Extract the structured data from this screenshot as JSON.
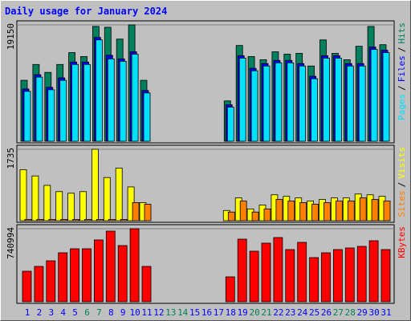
{
  "chart_data": [
    {
      "type": "bar",
      "title": "Daily usage for January 2024",
      "title_color": "#0000ff",
      "ylim": [
        0,
        19150
      ],
      "yticks": [
        19150
      ],
      "legend_separator": "/",
      "series": [
        {
          "name": "Hits",
          "color": "#00805c",
          "values": [
            10030,
            12640,
            11330,
            12640,
            14590,
            13940,
            18900,
            18760,
            16810,
            19150,
            10030,
            0,
            0,
            0,
            0,
            0,
            0,
            6640,
            15760,
            13940,
            13420,
            14720,
            14330,
            14460,
            12380,
            16680,
            14460,
            13420,
            15630,
            18890,
            15890
          ]
        },
        {
          "name": "Files",
          "color": "#0000ff",
          "values": [
            8600,
            10950,
            8870,
            10430,
            13040,
            13040,
            17080,
            14150,
            13560,
            14730,
            8350,
            0,
            0,
            0,
            0,
            0,
            0,
            6000,
            14080,
            12000,
            12780,
            13300,
            13300,
            12780,
            10690,
            14080,
            14080,
            12780,
            12780,
            15510,
            14990
          ]
        },
        {
          "name": "Pages",
          "color": "#00e0ff",
          "values": [
            8210,
            10550,
            8470,
            10030,
            12640,
            12640,
            16680,
            13550,
            13160,
            14330,
            7950,
            0,
            0,
            0,
            0,
            0,
            0,
            5600,
            13680,
            11600,
            12380,
            12900,
            12900,
            12380,
            10290,
            13680,
            13680,
            12380,
            12380,
            15110,
            14590
          ]
        }
      ]
    },
    {
      "type": "bar",
      "ylim": [
        0,
        1735
      ],
      "yticks": [
        1735
      ],
      "legend_separator": "/",
      "series": [
        {
          "name": "Visits",
          "color": "#ffff00",
          "values": [
            1240,
            1087,
            858,
            706,
            667,
            706,
            1735,
            1049,
            1278,
            820,
            439,
            0,
            0,
            0,
            0,
            0,
            0,
            248,
            553,
            286,
            381,
            629,
            591,
            553,
            477,
            515,
            553,
            553,
            648,
            629,
            591
          ]
        },
        {
          "name": "Sites",
          "color": "#ff8000",
          "values": [
            30,
            30,
            30,
            30,
            30,
            30,
            30,
            30,
            30,
            439,
            400,
            0,
            0,
            0,
            0,
            0,
            0,
            210,
            477,
            210,
            286,
            515,
            477,
            439,
            400,
            439,
            477,
            477,
            553,
            515,
            477
          ]
        }
      ]
    },
    {
      "type": "bar",
      "ylim": [
        0,
        740994
      ],
      "yticks": [
        740994
      ],
      "categories": [
        "1",
        "2",
        "3",
        "4",
        "5",
        "6",
        "7",
        "8",
        "9",
        "10",
        "11",
        "12",
        "13",
        "14",
        "15",
        "16",
        "17",
        "18",
        "19",
        "20",
        "21",
        "22",
        "23",
        "24",
        "25",
        "26",
        "27",
        "28",
        "29",
        "30",
        "31"
      ],
      "category_colors": [
        "#0000ff",
        "#0000ff",
        "#0000ff",
        "#0000ff",
        "#0000ff",
        "#00805c",
        "#00805c",
        "#0000ff",
        "#0000ff",
        "#0000ff",
        "#0000ff",
        "#0000ff",
        "#00805c",
        "#00805c",
        "#0000ff",
        "#0000ff",
        "#0000ff",
        "#0000ff",
        "#0000ff",
        "#00805c",
        "#00805c",
        "#0000ff",
        "#0000ff",
        "#0000ff",
        "#0000ff",
        "#0000ff",
        "#00805c",
        "#00805c",
        "#0000ff",
        "#0000ff",
        "#0000ff"
      ],
      "series": [
        {
          "name": "KBytes",
          "color": "#ff0000",
          "values": [
            309430,
            358290,
            415290,
            496720,
            537440,
            537440,
            627010,
            716580,
            570010,
            740994,
            358290,
            0,
            0,
            0,
            0,
            0,
            0,
            252430,
            635150,
            513010,
            594440,
            651440,
            529300,
            602580,
            447870,
            496720,
            529300,
            545580,
            561870,
            618870,
            529300
          ]
        }
      ]
    }
  ]
}
